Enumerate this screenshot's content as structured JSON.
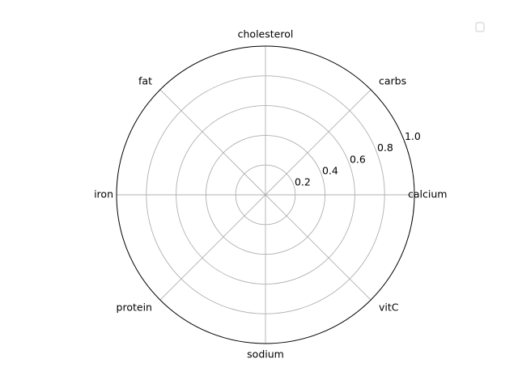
{
  "chart_data": {
    "type": "radar",
    "categories": [
      "calcium",
      "carbs",
      "cholesterol",
      "fat",
      "iron",
      "protein",
      "sodium",
      "vitC"
    ],
    "radial_ticks": [
      0.2,
      0.4,
      0.6,
      0.8,
      1.0
    ],
    "radial_tick_labels": [
      "0.2",
      "0.4",
      "0.6",
      "0.8",
      "1.0"
    ],
    "rlim": [
      0,
      1.0
    ],
    "series": [],
    "grid": true,
    "legend": {
      "placement": "upper-right",
      "entries": []
    }
  },
  "colors": {
    "grid": "#b0b0b0",
    "outline": "#000000",
    "legend_border": "#cccccc"
  }
}
